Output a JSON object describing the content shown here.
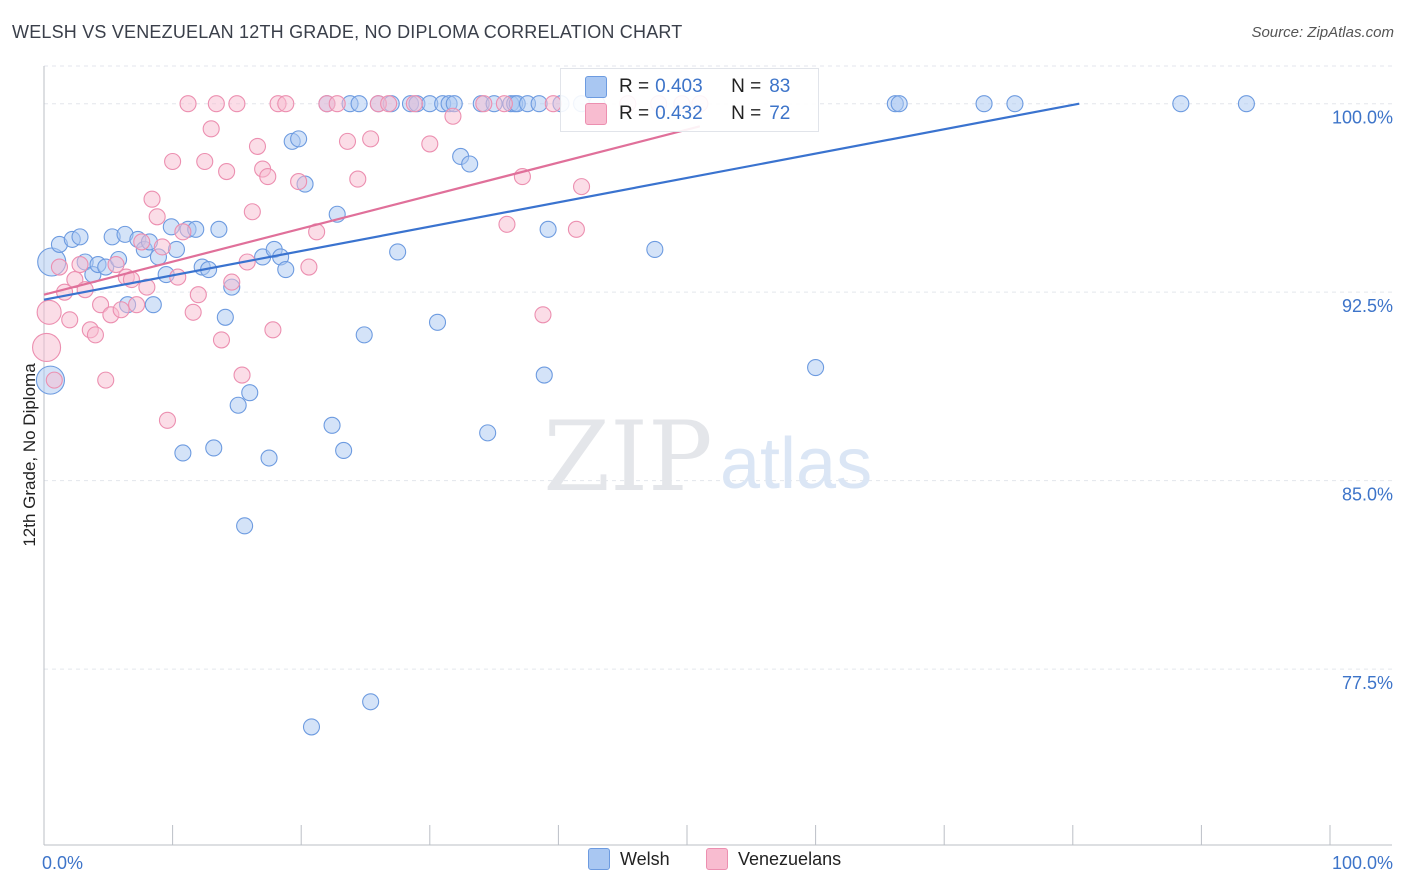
{
  "title": "WELSH VS VENEZUELAN 12TH GRADE, NO DIPLOMA CORRELATION CHART",
  "source": "Source: ZipAtlas.com",
  "watermark": {
    "zip": "ZIP",
    "atlas": "atlas"
  },
  "colors": {
    "welsh_fill": "#a9c7f2",
    "welsh_stroke": "#6d9be0",
    "welsh_line": "#3a73cf",
    "venez_fill": "#f8bcd0",
    "venez_stroke": "#ec8fb0",
    "venez_line": "#e0709a",
    "tick_label": "#3d74c9",
    "grid": "#e3e6ec"
  },
  "stats": [
    {
      "r_label": "R =",
      "r_value": "0.403",
      "n_label": "N =",
      "n_value": "83"
    },
    {
      "r_label": "R =",
      "r_value": "0.432",
      "n_label": "N =",
      "n_value": "72"
    }
  ],
  "legend": {
    "welsh": "Welsh",
    "venezuelans": "Venezuelans"
  },
  "chart_data": {
    "type": "scatter",
    "xlabel": "",
    "ylabel": "12th Grade, No Diploma",
    "xlim": [
      0,
      100
    ],
    "ylim": [
      70.5,
      101.5
    ],
    "x_tick_labels": [
      "0.0%",
      "100.0%"
    ],
    "y_ticks": [
      77.5,
      85.0,
      92.5,
      100.0
    ],
    "y_tick_labels": [
      "77.5%",
      "85.0%",
      "92.5%",
      "100.0%"
    ],
    "grid": "horizontal dashed",
    "legend_position": "bottom",
    "series": [
      {
        "name": "Welsh",
        "trend": {
          "x": [
            0,
            80.5
          ],
          "y": [
            92.2,
            100.0
          ]
        },
        "points": [
          [
            0.6,
            93.7,
            14
          ],
          [
            0.5,
            89.0,
            14
          ],
          [
            1.2,
            94.4,
            8
          ],
          [
            2.2,
            94.6,
            8
          ],
          [
            2.8,
            94.7,
            8
          ],
          [
            3.2,
            93.7,
            8
          ],
          [
            3.8,
            93.2,
            8
          ],
          [
            4.2,
            93.6,
            8
          ],
          [
            4.8,
            93.5,
            8
          ],
          [
            5.3,
            94.7,
            8
          ],
          [
            5.8,
            93.8,
            8
          ],
          [
            6.3,
            94.8,
            8
          ],
          [
            6.5,
            92.0,
            8
          ],
          [
            7.3,
            94.6,
            8
          ],
          [
            7.8,
            94.2,
            8
          ],
          [
            8.2,
            94.5,
            8
          ],
          [
            8.5,
            92.0,
            8
          ],
          [
            8.9,
            93.9,
            8
          ],
          [
            9.5,
            93.2,
            8
          ],
          [
            9.9,
            95.1,
            8
          ],
          [
            10.3,
            94.2,
            8
          ],
          [
            10.8,
            86.1,
            8
          ],
          [
            11.2,
            95.0,
            8
          ],
          [
            11.8,
            95.0,
            8
          ],
          [
            12.3,
            93.5,
            8
          ],
          [
            12.8,
            93.4,
            8
          ],
          [
            13.2,
            86.3,
            8
          ],
          [
            13.6,
            95.0,
            8
          ],
          [
            14.1,
            91.5,
            8
          ],
          [
            14.6,
            92.7,
            8
          ],
          [
            15.1,
            88.0,
            8
          ],
          [
            15.6,
            83.2,
            8
          ],
          [
            16.0,
            88.5,
            8
          ],
          [
            17.0,
            93.9,
            8
          ],
          [
            17.5,
            85.9,
            8
          ],
          [
            17.9,
            94.2,
            8
          ],
          [
            18.4,
            93.9,
            8
          ],
          [
            18.8,
            93.4,
            8
          ],
          [
            19.3,
            98.5,
            8
          ],
          [
            19.8,
            98.6,
            8
          ],
          [
            20.3,
            96.8,
            8
          ],
          [
            20.8,
            75.2,
            8
          ],
          [
            22.0,
            100.0,
            8
          ],
          [
            22.4,
            87.2,
            8
          ],
          [
            22.8,
            95.6,
            8
          ],
          [
            23.3,
            86.2,
            8
          ],
          [
            23.8,
            100.0,
            8
          ],
          [
            24.5,
            100.0,
            8
          ],
          [
            24.9,
            90.8,
            8
          ],
          [
            25.4,
            76.2,
            8
          ],
          [
            26.0,
            100.0,
            8
          ],
          [
            27.0,
            100.0,
            8
          ],
          [
            27.5,
            94.1,
            8
          ],
          [
            28.5,
            100.0,
            8
          ],
          [
            29.0,
            100.0,
            8
          ],
          [
            30.0,
            100.0,
            8
          ],
          [
            30.6,
            91.3,
            8
          ],
          [
            31.0,
            100.0,
            8
          ],
          [
            31.5,
            100.0,
            8
          ],
          [
            31.9,
            100.0,
            8
          ],
          [
            32.4,
            97.9,
            8
          ],
          [
            33.1,
            97.6,
            8
          ],
          [
            34.0,
            100.0,
            8
          ],
          [
            35.0,
            100.0,
            8
          ],
          [
            34.5,
            86.9,
            8
          ],
          [
            36.3,
            100.0,
            8
          ],
          [
            36.6,
            100.0,
            8
          ],
          [
            36.8,
            100.0,
            8
          ],
          [
            37.6,
            100.0,
            8
          ],
          [
            38.5,
            100.0,
            8
          ],
          [
            38.9,
            89.2,
            8
          ],
          [
            39.2,
            95.0,
            8
          ],
          [
            40.2,
            100.0,
            8
          ],
          [
            41.8,
            100.0,
            8
          ],
          [
            43.0,
            100.0,
            8
          ],
          [
            47.5,
            94.2,
            8
          ],
          [
            60.0,
            89.5,
            8
          ],
          [
            66.2,
            100.0,
            8
          ],
          [
            66.5,
            100.0,
            8
          ],
          [
            73.1,
            100.0,
            8
          ],
          [
            75.5,
            100.0,
            8
          ],
          [
            88.4,
            100.0,
            8
          ],
          [
            93.5,
            100.0,
            8
          ]
        ]
      },
      {
        "name": "Venezuelans",
        "trend": {
          "x": [
            0,
            51.0
          ],
          "y": [
            92.4,
            99.1
          ]
        },
        "points": [
          [
            0.2,
            90.3,
            14
          ],
          [
            0.4,
            91.7,
            12
          ],
          [
            0.8,
            89.0,
            8
          ],
          [
            1.2,
            93.5,
            8
          ],
          [
            1.6,
            92.5,
            8
          ],
          [
            2.0,
            91.4,
            8
          ],
          [
            2.4,
            93.0,
            8
          ],
          [
            2.8,
            93.6,
            8
          ],
          [
            3.2,
            92.6,
            8
          ],
          [
            3.6,
            91.0,
            8
          ],
          [
            4.0,
            90.8,
            8
          ],
          [
            4.4,
            92.0,
            8
          ],
          [
            4.8,
            89.0,
            8
          ],
          [
            5.2,
            91.6,
            8
          ],
          [
            5.6,
            93.6,
            8
          ],
          [
            6.0,
            91.8,
            8
          ],
          [
            6.4,
            93.1,
            8
          ],
          [
            6.8,
            93.0,
            8
          ],
          [
            7.2,
            92.0,
            8
          ],
          [
            7.6,
            94.5,
            8
          ],
          [
            8.0,
            92.7,
            8
          ],
          [
            8.4,
            96.2,
            8
          ],
          [
            8.8,
            95.5,
            8
          ],
          [
            9.2,
            94.3,
            8
          ],
          [
            9.6,
            87.4,
            8
          ],
          [
            10.0,
            97.7,
            8
          ],
          [
            10.4,
            93.1,
            8
          ],
          [
            10.8,
            94.9,
            8
          ],
          [
            11.2,
            100.0,
            8
          ],
          [
            11.6,
            91.7,
            8
          ],
          [
            12.0,
            92.4,
            8
          ],
          [
            12.5,
            97.7,
            8
          ],
          [
            13.0,
            99.0,
            8
          ],
          [
            13.4,
            100.0,
            8
          ],
          [
            13.8,
            90.6,
            8
          ],
          [
            14.2,
            97.3,
            8
          ],
          [
            14.6,
            92.9,
            8
          ],
          [
            15.0,
            100.0,
            8
          ],
          [
            15.4,
            89.2,
            8
          ],
          [
            15.8,
            93.7,
            8
          ],
          [
            16.2,
            95.7,
            8
          ],
          [
            16.6,
            98.3,
            8
          ],
          [
            17.0,
            97.4,
            8
          ],
          [
            17.4,
            97.1,
            8
          ],
          [
            17.8,
            91.0,
            8
          ],
          [
            18.2,
            100.0,
            8
          ],
          [
            18.8,
            100.0,
            8
          ],
          [
            19.8,
            96.9,
            8
          ],
          [
            20.6,
            93.5,
            8
          ],
          [
            21.2,
            94.9,
            8
          ],
          [
            22.0,
            100.0,
            8
          ],
          [
            22.8,
            100.0,
            8
          ],
          [
            23.6,
            98.5,
            8
          ],
          [
            24.4,
            97.0,
            8
          ],
          [
            25.4,
            98.6,
            8
          ],
          [
            26.0,
            100.0,
            8
          ],
          [
            26.8,
            100.0,
            8
          ],
          [
            28.8,
            100.0,
            8
          ],
          [
            30.0,
            98.4,
            8
          ],
          [
            31.8,
            99.5,
            8
          ],
          [
            34.2,
            100.0,
            8
          ],
          [
            35.8,
            100.0,
            8
          ],
          [
            36.0,
            95.2,
            8
          ],
          [
            37.2,
            97.1,
            8
          ],
          [
            38.8,
            91.6,
            8
          ],
          [
            39.6,
            100.0,
            8
          ],
          [
            41.4,
            95.0,
            8
          ],
          [
            41.8,
            96.7,
            8
          ],
          [
            45.4,
            100.0,
            8
          ],
          [
            47.8,
            100.0,
            8
          ],
          [
            49.6,
            100.0,
            8
          ],
          [
            51.0,
            100.0,
            8
          ]
        ]
      }
    ]
  }
}
